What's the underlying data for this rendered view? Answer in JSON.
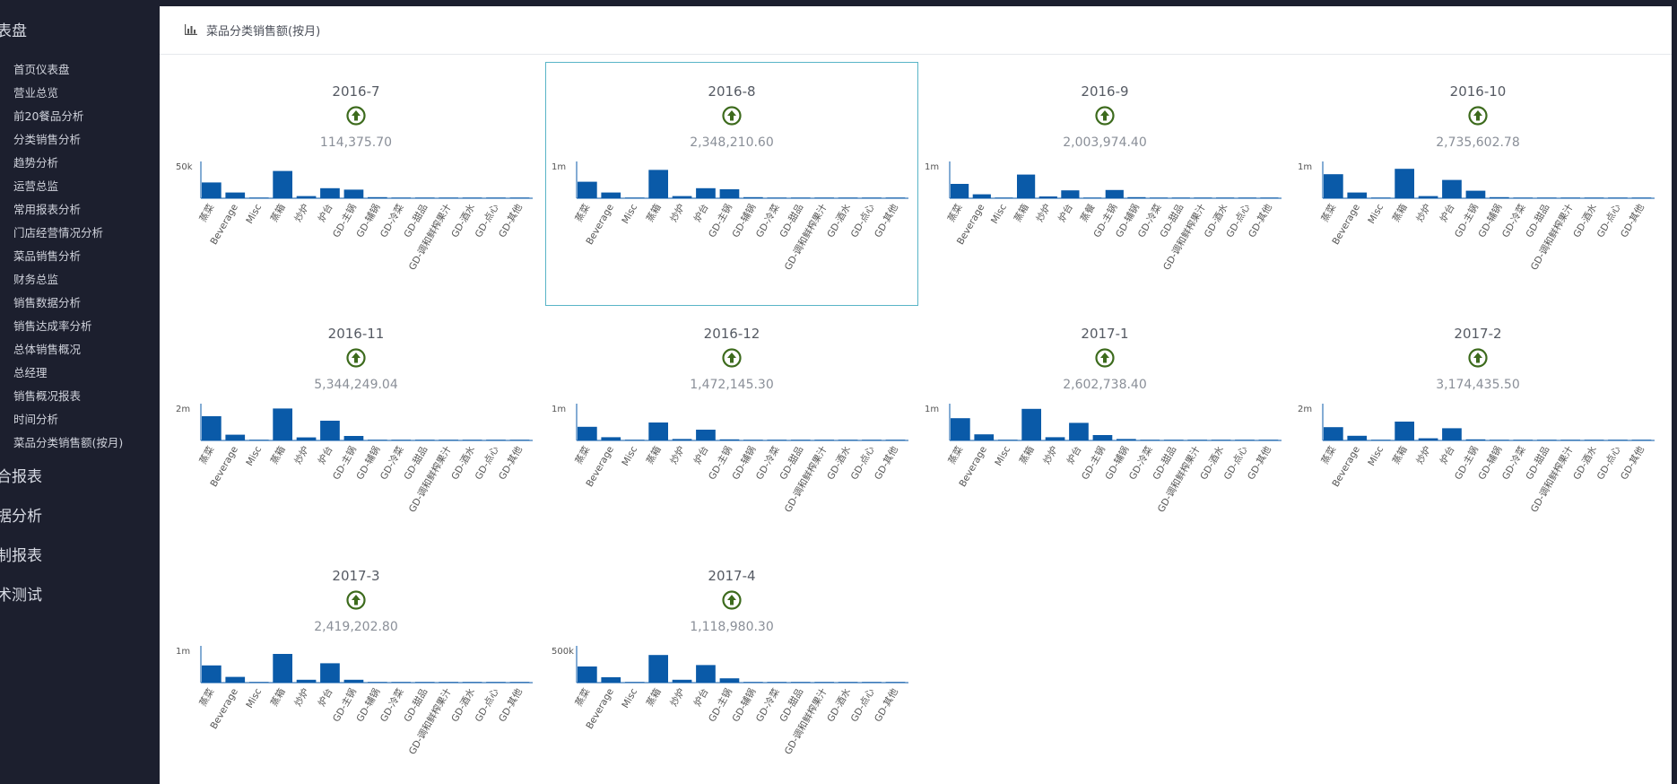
{
  "sidebar": {
    "group_title": "表盘",
    "items": [
      {
        "label": "首页仪表盘"
      },
      {
        "label": "营业总览"
      },
      {
        "label": "前20餐品分析"
      },
      {
        "label": "分类销售分析"
      },
      {
        "label": "趋势分析"
      },
      {
        "label": "运营总监"
      },
      {
        "label": "常用报表分析"
      },
      {
        "label": "门店经营情况分析"
      },
      {
        "label": "菜品销售分析"
      },
      {
        "label": "财务总监"
      },
      {
        "label": "销售数据分析"
      },
      {
        "label": "销售达成率分析"
      },
      {
        "label": "总体销售概况"
      },
      {
        "label": "总经理"
      },
      {
        "label": "销售概况报表"
      },
      {
        "label": "时间分析"
      },
      {
        "label": "菜品分类销售额(按月)"
      }
    ],
    "groups": [
      {
        "label": "合报表"
      },
      {
        "label": "据分析"
      },
      {
        "label": "制报表"
      },
      {
        "label": "术测试"
      }
    ]
  },
  "header": {
    "title": "菜品分类销售额(按月)",
    "icon": "bar-chart-icon"
  },
  "colors": {
    "bar": "#0a5aa8",
    "arrow": "#3d6b1d",
    "selected_border": "#59b5c7"
  },
  "panels": [
    {
      "title": "2016-7",
      "value": "114,375.70",
      "trend_icon": "arrow-up-circle-icon"
    },
    {
      "title": "2016-8",
      "value": "2,348,210.60",
      "trend_icon": "arrow-up-circle-icon",
      "selected": true
    },
    {
      "title": "2016-9",
      "value": "2,003,974.40",
      "trend_icon": "arrow-up-circle-icon"
    },
    {
      "title": "2016-10",
      "value": "2,735,602.78",
      "trend_icon": "arrow-up-circle-icon"
    },
    {
      "title": "2016-11",
      "value": "5,344,249.04",
      "trend_icon": "arrow-up-circle-icon"
    },
    {
      "title": "2016-12",
      "value": "1,472,145.30",
      "trend_icon": "arrow-up-circle-icon"
    },
    {
      "title": "2017-1",
      "value": "2,602,738.40",
      "trend_icon": "arrow-up-circle-icon"
    },
    {
      "title": "2017-2",
      "value": "3,174,435.50",
      "trend_icon": "arrow-up-circle-icon"
    },
    {
      "title": "2017-3",
      "value": "2,419,202.80",
      "trend_icon": "arrow-up-circle-icon"
    },
    {
      "title": "2017-4",
      "value": "1,118,980.30",
      "trend_icon": "arrow-up-circle-icon"
    }
  ],
  "chart_data": [
    {
      "type": "bar",
      "title": "2016-7",
      "ytick": "50k",
      "ymax": 50000,
      "categories": [
        "蒸菜",
        "Beverage",
        "Misc",
        "蒸箱",
        "炒炉",
        "炉台",
        "GD-主锅",
        "GD-辅锅",
        "GD-冷菜",
        "GD-甜品",
        "GD-调和鲜榨果汁",
        "GD-酒水",
        "GD-点心",
        "GD-其他"
      ],
      "values": [
        22000,
        8000,
        500,
        38000,
        3000,
        14000,
        12000,
        1500,
        800,
        600,
        400,
        300,
        300,
        200
      ]
    },
    {
      "type": "bar",
      "title": "2016-8",
      "ytick": "1m",
      "ymax": 1000000,
      "categories": [
        "蒸菜",
        "Beverage",
        "Misc",
        "蒸箱",
        "炒炉",
        "炉台",
        "GD-主锅",
        "GD-辅锅",
        "GD-冷菜",
        "GD-甜品",
        "GD-调和鲜榨果汁",
        "GD-酒水",
        "GD-点心",
        "GD-其他"
      ],
      "values": [
        460000,
        160000,
        10000,
        790000,
        60000,
        280000,
        250000,
        30000,
        15000,
        12000,
        10000,
        9000,
        8000,
        6000
      ]
    },
    {
      "type": "bar",
      "title": "2016-9",
      "ytick": "1m",
      "ymax": 1000000,
      "categories": [
        "蒸菜",
        "Beverage",
        "Misc",
        "蒸箱",
        "炒炉",
        "炉台",
        "蒸餐",
        "GD-主锅",
        "GD-辅锅",
        "GD-冷菜",
        "GD-甜品",
        "GD-调和鲜榨果汁",
        "GD-酒水",
        "GD-点心",
        "GD-其他"
      ],
      "values": [
        400000,
        110000,
        10000,
        660000,
        50000,
        220000,
        10000,
        230000,
        30000,
        15000,
        12000,
        10000,
        9000,
        8000,
        6000
      ]
    },
    {
      "type": "bar",
      "title": "2016-10",
      "ytick": "1m",
      "ymax": 1000000,
      "categories": [
        "蒸菜",
        "Beverage",
        "Misc",
        "蒸箱",
        "炒炉",
        "炉台",
        "GD-主锅",
        "GD-辅锅",
        "GD-冷菜",
        "GD-甜品",
        "GD-调和鲜榨果汁",
        "GD-酒水",
        "GD-点心",
        "GD-其他"
      ],
      "values": [
        670000,
        160000,
        10000,
        820000,
        60000,
        510000,
        210000,
        30000,
        15000,
        12000,
        10000,
        9000,
        8000,
        6000
      ]
    },
    {
      "type": "bar",
      "title": "2016-11",
      "ytick": "2m",
      "ymax": 2000000,
      "categories": [
        "蒸菜",
        "Beverage",
        "Misc",
        "蒸箱",
        "炒炉",
        "炉台",
        "GD-主锅",
        "GD-辅锅",
        "GD-冷菜",
        "GD-甜品",
        "GD-调和鲜榨果汁",
        "GD-酒水",
        "GD-点心",
        "GD-其他"
      ],
      "values": [
        1350000,
        320000,
        20000,
        1780000,
        170000,
        1100000,
        250000,
        40000,
        25000,
        20000,
        15000,
        12000,
        10000,
        8000
      ]
    },
    {
      "type": "bar",
      "title": "2016-12",
      "ytick": "1m",
      "ymax": 1000000,
      "categories": [
        "蒸菜",
        "Beverage",
        "Misc",
        "蒸箱",
        "炒炉",
        "炉台",
        "GD-主锅",
        "GD-辅锅",
        "GD-冷菜",
        "GD-甜品",
        "GD-调和鲜榨果汁",
        "GD-酒水",
        "GD-点心",
        "GD-其他"
      ],
      "values": [
        380000,
        90000,
        10000,
        500000,
        40000,
        300000,
        30000,
        20000,
        12000,
        10000,
        9000,
        8000,
        7000,
        6000
      ]
    },
    {
      "type": "bar",
      "title": "2017-1",
      "ytick": "1m",
      "ymax": 1000000,
      "categories": [
        "蒸菜",
        "Beverage",
        "Misc",
        "蒸箱",
        "炒炉",
        "炉台",
        "GD-主锅",
        "GD-辅锅",
        "GD-冷菜",
        "GD-甜品",
        "GD-调和鲜榨果汁",
        "GD-酒水",
        "GD-点心",
        "GD-其他"
      ],
      "values": [
        620000,
        170000,
        15000,
        880000,
        90000,
        490000,
        150000,
        40000,
        20000,
        15000,
        12000,
        10000,
        9000,
        7000
      ]
    },
    {
      "type": "bar",
      "title": "2017-2",
      "ytick": "2m",
      "ymax": 2000000,
      "categories": [
        "蒸菜",
        "Beverage",
        "Misc",
        "蒸箱",
        "炒炉",
        "炉台",
        "GD-主锅",
        "GD-辅锅",
        "GD-冷菜",
        "GD-甜品",
        "GD-调和鲜榨果汁",
        "GD-酒水",
        "GD-点心",
        "GD-其他"
      ],
      "values": [
        740000,
        260000,
        20000,
        1050000,
        120000,
        680000,
        60000,
        30000,
        20000,
        15000,
        12000,
        10000,
        9000,
        7000
      ]
    },
    {
      "type": "bar",
      "title": "2017-3",
      "ytick": "1m",
      "ymax": 1000000,
      "categories": [
        "蒸菜",
        "Beverage",
        "Misc",
        "蒸箱",
        "炒炉",
        "炉台",
        "GD-主锅",
        "GD-辅锅",
        "GD-冷菜",
        "GD-甜品",
        "GD-调和鲜榨果汁",
        "GD-酒水",
        "GD-点心",
        "GD-其他"
      ],
      "values": [
        480000,
        160000,
        10000,
        800000,
        80000,
        540000,
        80000,
        20000,
        15000,
        12000,
        10000,
        9000,
        8000,
        6000
      ]
    },
    {
      "type": "bar",
      "title": "2017-4",
      "ytick": "500k",
      "ymax": 500000,
      "categories": [
        "蒸菜",
        "Beverage",
        "Misc",
        "蒸箱",
        "炒炉",
        "炉台",
        "GD-主锅",
        "GD-辅锅",
        "GD-冷菜",
        "GD-甜品",
        "GD-调和鲜榨果汁",
        "GD-酒水",
        "GD-点心",
        "GD-其他"
      ],
      "values": [
        225000,
        75000,
        8000,
        385000,
        40000,
        245000,
        60000,
        10000,
        8000,
        7000,
        6000,
        5000,
        4000,
        3000
      ]
    }
  ]
}
